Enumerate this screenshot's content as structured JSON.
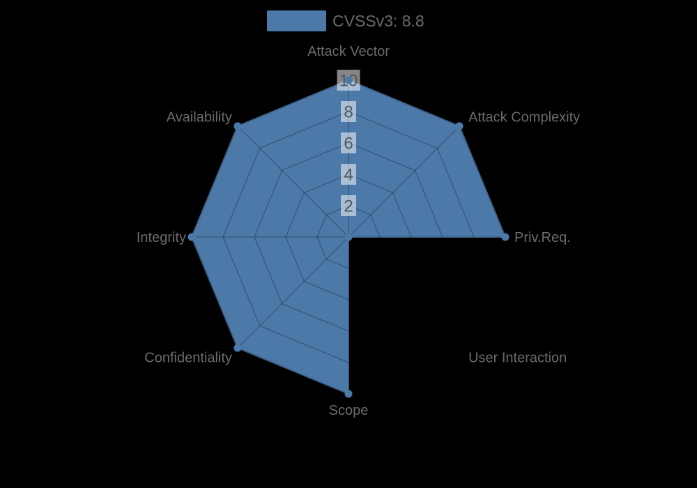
{
  "page": {
    "background": "#000000"
  },
  "legend": {
    "label": "CVSSv3: 8.8",
    "swatch_color": "#4d79a9"
  },
  "chart_data": {
    "type": "radar",
    "title": "CVSSv3: 8.8",
    "categories": [
      "Attack Vector",
      "Attack Complexity",
      "Priv.Req.",
      "User Interaction",
      "Scope",
      "Confidentiality",
      "Integrity",
      "Availability"
    ],
    "series": [
      {
        "name": "CVSSv3: 8.8",
        "values": [
          10,
          10,
          10,
          0,
          10,
          10,
          10,
          10
        ],
        "color": "#4d79a9"
      }
    ],
    "rmax": 10,
    "tick_values": [
      2,
      4,
      6,
      8,
      10
    ],
    "tick_labels": [
      "2",
      "4",
      "6",
      "8",
      "10"
    ],
    "start_angle_deg": 90,
    "direction": "clockwise",
    "grid": true,
    "grid_shape": "polygon",
    "legend_position": "top",
    "styles": {
      "background": "#000000",
      "grid_line": "rgba(0,0,0,0.28)",
      "axis_label_color": "#6b6b6b",
      "tick_text_color": "#50565e",
      "tick_box_fill": "rgba(255,255,255,0.52)",
      "marker_radius": 5.5
    }
  }
}
